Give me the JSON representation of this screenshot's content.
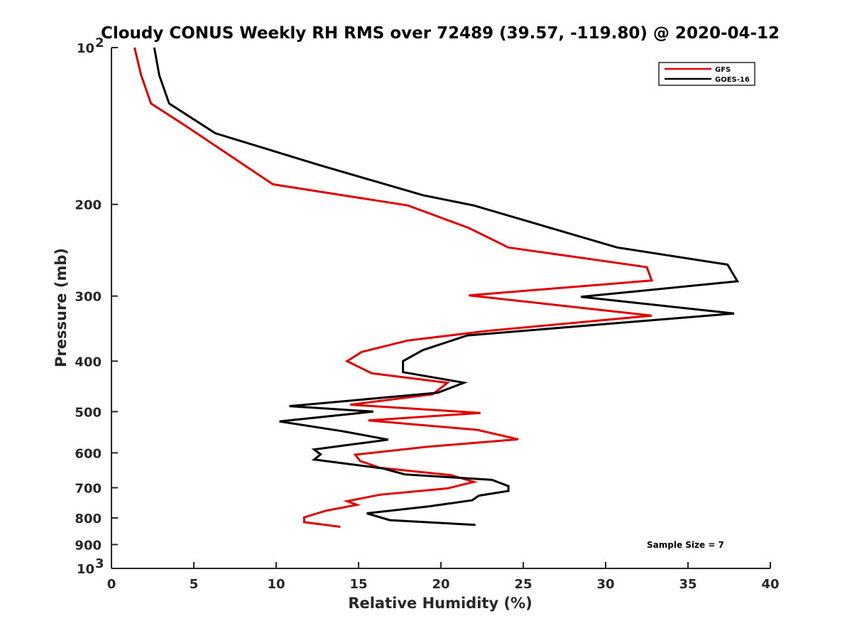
{
  "chart_data": {
    "type": "line",
    "title": "Cloudy CONUS Weekly RH RMS over 72489 (39.57, -119.80) @ 2020-04-12",
    "xlabel": "Relative Humidity (%)",
    "ylabel": "Pressure (mb)",
    "xlim": [
      0,
      40
    ],
    "ylim": [
      100,
      1000
    ],
    "y_scale": "log",
    "y_reversed": true,
    "x_ticks": [
      0,
      5,
      10,
      15,
      20,
      25,
      30,
      35,
      40
    ],
    "y_ticks": [
      {
        "value": 100,
        "label": "10",
        "sup": "2"
      },
      {
        "value": 200,
        "label": "200"
      },
      {
        "value": 300,
        "label": "300"
      },
      {
        "value": 400,
        "label": "400"
      },
      {
        "value": 500,
        "label": "500"
      },
      {
        "value": 600,
        "label": "600"
      },
      {
        "value": 700,
        "label": "700"
      },
      {
        "value": 800,
        "label": "800"
      },
      {
        "value": 900,
        "label": "900"
      },
      {
        "value": 1000,
        "label": "10",
        "sup": "3"
      }
    ],
    "legend_position": "top-right",
    "annotation": "Sample Size = 7",
    "series": [
      {
        "name": "GFS",
        "color": "#e00000",
        "points": [
          [
            1.4,
            100
          ],
          [
            1.8,
            113
          ],
          [
            2.4,
            128
          ],
          [
            4.6,
            142
          ],
          [
            9.8,
            183
          ],
          [
            18.0,
            201
          ],
          [
            21.7,
            222
          ],
          [
            24.1,
            242
          ],
          [
            32.5,
            264
          ],
          [
            32.8,
            280
          ],
          [
            21.7,
            299
          ],
          [
            32.8,
            327
          ],
          [
            22.8,
            350
          ],
          [
            18.0,
            365
          ],
          [
            15.2,
            384
          ],
          [
            14.3,
            400
          ],
          [
            15.8,
            422
          ],
          [
            20.4,
            440
          ],
          [
            19.5,
            463
          ],
          [
            14.5,
            485
          ],
          [
            22.4,
            503
          ],
          [
            15.6,
            520
          ],
          [
            22.2,
            542
          ],
          [
            24.7,
            565
          ],
          [
            19.2,
            584
          ],
          [
            14.8,
            605
          ],
          [
            15.1,
            622
          ],
          [
            16.3,
            641
          ],
          [
            20.6,
            662
          ],
          [
            22.0,
            682
          ],
          [
            20.4,
            702
          ],
          [
            16.3,
            722
          ],
          [
            14.3,
            743
          ],
          [
            14.9,
            755
          ],
          [
            13.0,
            775
          ],
          [
            11.7,
            798
          ],
          [
            11.7,
            815
          ],
          [
            13.9,
            832
          ]
        ]
      },
      {
        "name": "GOES-16",
        "color": "#000000",
        "points": [
          [
            2.6,
            100
          ],
          [
            2.9,
            113
          ],
          [
            3.5,
            128
          ],
          [
            6.3,
            146
          ],
          [
            12.6,
            168
          ],
          [
            18.9,
            192
          ],
          [
            22.0,
            201
          ],
          [
            30.7,
            242
          ],
          [
            37.4,
            261
          ],
          [
            38.0,
            281
          ],
          [
            28.5,
            301
          ],
          [
            37.8,
            324
          ],
          [
            21.6,
            357
          ],
          [
            18.9,
            381
          ],
          [
            17.7,
            400
          ],
          [
            17.7,
            420
          ],
          [
            21.4,
            440
          ],
          [
            19.8,
            460
          ],
          [
            10.8,
            488
          ],
          [
            15.9,
            500
          ],
          [
            10.2,
            522
          ],
          [
            14.0,
            545
          ],
          [
            16.8,
            566
          ],
          [
            12.3,
            591
          ],
          [
            12.7,
            604
          ],
          [
            12.3,
            618
          ],
          [
            16.5,
            643
          ],
          [
            17.8,
            660
          ],
          [
            23.1,
            676
          ],
          [
            24.1,
            695
          ],
          [
            24.1,
            710
          ],
          [
            22.3,
            725
          ],
          [
            21.9,
            740
          ],
          [
            19.3,
            760
          ],
          [
            15.5,
            784
          ],
          [
            16.9,
            808
          ],
          [
            22.1,
            825
          ]
        ]
      }
    ]
  }
}
